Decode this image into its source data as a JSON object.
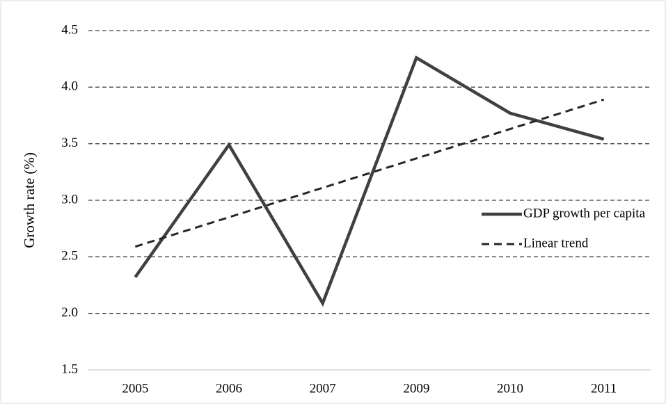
{
  "chart_data": {
    "type": "line",
    "y_label": "Growth rate (%)",
    "categories": [
      "2005",
      "2006",
      "2007",
      "2009",
      "2010",
      "2011"
    ],
    "series": [
      {
        "name": "GDP growth per capita",
        "color": "#404040",
        "style": "solid",
        "values": [
          2.32,
          3.49,
          2.09,
          4.26,
          3.77,
          3.54
        ]
      },
      {
        "name": "Linear trend",
        "color": "#262626",
        "style": "dashed",
        "values": [
          2.59,
          2.85,
          3.11,
          3.37,
          3.63,
          3.89
        ]
      }
    ],
    "ylim": [
      1.5,
      4.5
    ],
    "yticks": [
      1.5,
      {
        "value": 2,
        "label": "2.0"
      },
      2.5,
      {
        "value": 3,
        "label": "3.0"
      },
      3.5,
      {
        "value": 4,
        "label": "4.0"
      },
      4.5
    ],
    "grid": true,
    "legend": "right"
  }
}
